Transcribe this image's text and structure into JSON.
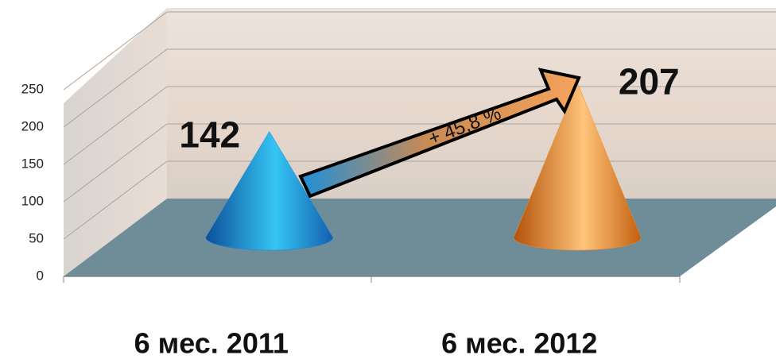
{
  "chart_data": {
    "type": "cone",
    "categories": [
      "6 мес. 2011",
      "6 мес. 2012"
    ],
    "values": [
      142,
      207
    ],
    "colors": [
      "#1e86d6",
      "#f08a22"
    ],
    "ylim": [
      0,
      250
    ],
    "yticks": [
      0,
      50,
      100,
      150,
      200,
      250
    ],
    "grid": true,
    "annotation": "+ 45,8 %"
  }
}
